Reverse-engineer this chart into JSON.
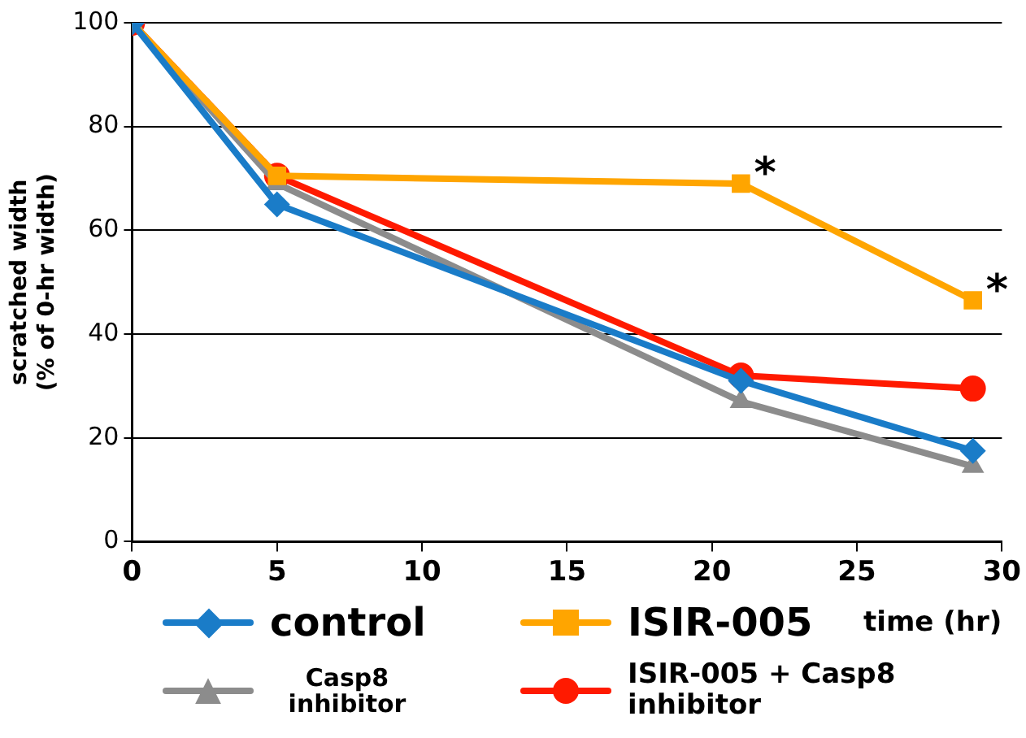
{
  "chart_data": {
    "type": "line",
    "xlabel": "time (hr)",
    "ylabel": "scratched width\n(% of 0-hr width)",
    "x": [
      0,
      5,
      21,
      29
    ],
    "series": [
      {
        "name": "control",
        "color": "#1a7cc8",
        "marker": "diamond",
        "values": [
          100,
          65,
          31,
          17.5
        ]
      },
      {
        "name": "ISIR-005",
        "color": "#ffa500",
        "marker": "square",
        "values": [
          100,
          70.5,
          69,
          46.5
        ]
      },
      {
        "name": "Casp8 inhibitor",
        "color": "#8c8c8c",
        "marker": "triangle",
        "values": [
          100,
          69,
          27,
          14.5
        ]
      },
      {
        "name": "ISIR-005 + Casp8 inhibitor",
        "color": "#ff1a00",
        "marker": "circle",
        "values": [
          100,
          70.5,
          32,
          29.5
        ]
      }
    ],
    "xlim": [
      0,
      30
    ],
    "xticks": [
      0,
      5,
      10,
      15,
      20,
      25,
      30
    ],
    "ylim": [
      0,
      100
    ],
    "yticks": [
      0,
      20,
      40,
      60,
      80,
      100
    ],
    "grid": "y",
    "legend": "bottom",
    "line_style": "solid",
    "annotations": [
      {
        "text": "*",
        "x": 21,
        "y": 69
      },
      {
        "text": "*",
        "x": 29,
        "y": 46.5
      }
    ]
  }
}
